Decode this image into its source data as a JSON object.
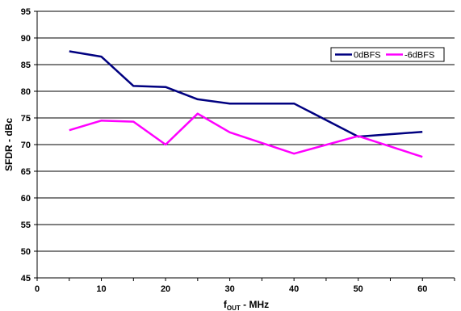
{
  "chart_data": {
    "type": "line",
    "xlabel": {
      "main": "f",
      "sub": "OUT",
      "rest": " - MHz"
    },
    "ylabel": "SFDR - dBc",
    "xlim": [
      0,
      65
    ],
    "ylim": [
      45,
      95
    ],
    "x_ticks": [
      0,
      10,
      20,
      30,
      40,
      50,
      60
    ],
    "x_minor_step": 5,
    "y_ticks": [
      45,
      50,
      55,
      60,
      65,
      70,
      75,
      80,
      85,
      90,
      95
    ],
    "grid": "horizontal",
    "legend_position": "top-right",
    "x": [
      5,
      10,
      15,
      20,
      25,
      30,
      40,
      50,
      60
    ],
    "series": [
      {
        "name": "0dBFS",
        "color": "#000080",
        "values": [
          87.5,
          86.5,
          81.0,
          80.8,
          78.5,
          77.7,
          77.7,
          71.5,
          72.4
        ]
      },
      {
        "name": "-6dBFS",
        "color": "#ff00ff",
        "values": [
          72.7,
          74.5,
          74.3,
          70.0,
          75.8,
          72.3,
          68.3,
          71.6,
          67.7
        ]
      }
    ]
  }
}
